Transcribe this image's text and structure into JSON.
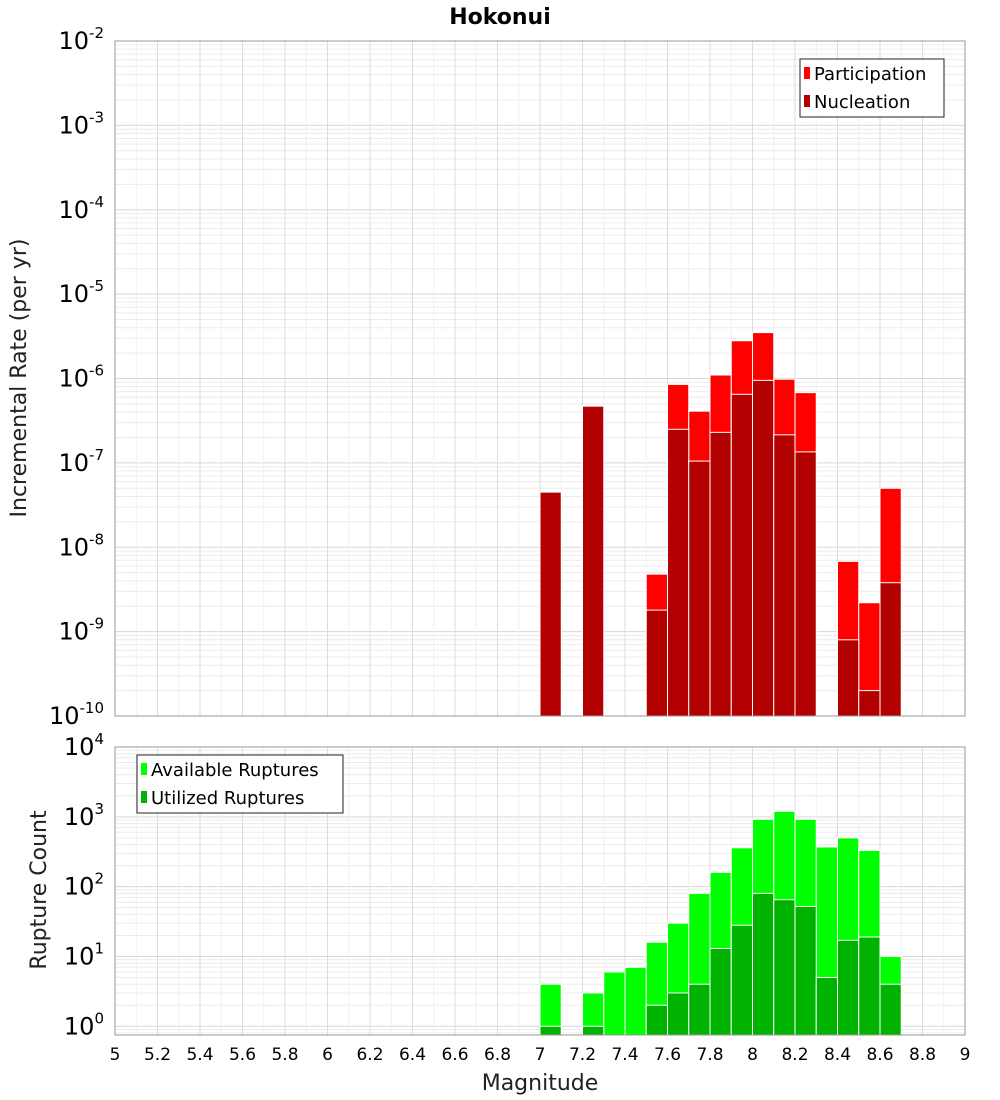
{
  "chart_data": [
    {
      "type": "bar",
      "title": "Hokonui",
      "xlabel": "",
      "ylabel": "Incremental Rate (per yr)",
      "yscale": "log",
      "ylim": [
        1e-10,
        0.01
      ],
      "xlim": [
        5,
        9
      ],
      "grid": true,
      "legend_position": "top-right",
      "bar_width": 0.1,
      "x": [
        7.05,
        7.25,
        7.55,
        7.65,
        7.75,
        7.85,
        7.95,
        8.05,
        8.15,
        8.25,
        8.45,
        8.55,
        8.65
      ],
      "series": [
        {
          "name": "Participation",
          "color": "#ff0000",
          "values": [
            4.5e-08,
            4.7e-07,
            4.8e-09,
            8.5e-07,
            4.1e-07,
            1.1e-06,
            2.8e-06,
            3.5e-06,
            9.8e-07,
            6.8e-07,
            6.8e-09,
            2.2e-09,
            5e-08
          ]
        },
        {
          "name": "Nucleation",
          "color": "#b30000",
          "values": [
            4.5e-08,
            4.7e-07,
            1.8e-09,
            2.5e-07,
            1.05e-07,
            2.3e-07,
            6.5e-07,
            9.5e-07,
            2.15e-07,
            1.35e-07,
            8e-10,
            2e-10,
            3.8e-09
          ]
        }
      ]
    },
    {
      "type": "bar",
      "title": "",
      "xlabel": "Magnitude",
      "ylabel": "Rupture Count",
      "yscale": "log",
      "ylim": [
        0.75,
        10000
      ],
      "xlim": [
        5,
        9
      ],
      "grid": true,
      "legend_position": "top-left",
      "bar_width": 0.1,
      "x": [
        7.05,
        7.25,
        7.35,
        7.45,
        7.55,
        7.65,
        7.75,
        7.85,
        7.95,
        8.05,
        8.15,
        8.25,
        8.35,
        8.45,
        8.55,
        8.65
      ],
      "series": [
        {
          "name": "Available Ruptures",
          "color": "#00ff00",
          "values": [
            4,
            3,
            6,
            7,
            16,
            30,
            80,
            160,
            360,
            920,
            1200,
            920,
            370,
            500,
            330,
            10
          ]
        },
        {
          "name": "Utilized Ruptures",
          "color": "#00b300",
          "values": [
            1,
            1,
            0,
            0,
            2,
            3,
            4,
            13,
            28,
            80,
            65,
            52,
            5,
            17,
            19,
            4
          ]
        }
      ]
    }
  ],
  "x_ticks": [
    "5",
    "5.2",
    "5.4",
    "5.6",
    "5.8",
    "6",
    "6.2",
    "6.4",
    "6.6",
    "6.8",
    "7",
    "7.2",
    "7.4",
    "7.6",
    "7.8",
    "8",
    "8.2",
    "8.4",
    "8.6",
    "8.8",
    "9"
  ],
  "top_y_ticks": [
    {
      "base": "10",
      "exp": "-2",
      "value": 0.01
    },
    {
      "base": "10",
      "exp": "-3",
      "value": 0.001
    },
    {
      "base": "10",
      "exp": "-4",
      "value": 0.0001
    },
    {
      "base": "10",
      "exp": "-5",
      "value": 1e-05
    },
    {
      "base": "10",
      "exp": "-6",
      "value": 1e-06
    },
    {
      "base": "10",
      "exp": "-7",
      "value": 1e-07
    },
    {
      "base": "10",
      "exp": "-8",
      "value": 1e-08
    },
    {
      "base": "10",
      "exp": "-9",
      "value": 1e-09
    },
    {
      "base": "10",
      "exp": "-10",
      "value": 1e-10
    }
  ],
  "bottom_y_ticks": [
    {
      "base": "10",
      "exp": "4",
      "value": 10000
    },
    {
      "base": "10",
      "exp": "3",
      "value": 1000
    },
    {
      "base": "10",
      "exp": "2",
      "value": 100
    },
    {
      "base": "10",
      "exp": "1",
      "value": 10
    },
    {
      "base": "10",
      "exp": "0",
      "value": 1
    }
  ]
}
